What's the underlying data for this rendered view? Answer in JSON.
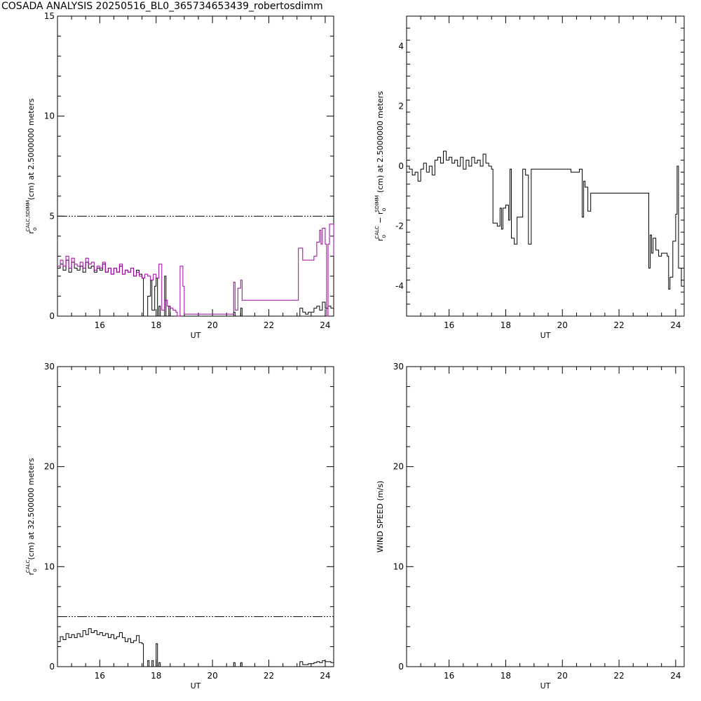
{
  "title": "COSADA ANALYSIS 20250516_BL0_365734653439_robertosdimm",
  "colors": {
    "axis": "#000000",
    "primary": "#000000",
    "secondary": "#a000a0"
  },
  "chart_data": [
    {
      "type": "line",
      "panel": "top-left",
      "xlabel": "UT",
      "ylabel_parts": [
        "r",
        "o",
        "CALC,SDIMM",
        "(cm)  at  2.5000000 meters"
      ],
      "xlim": [
        14.5,
        24.3
      ],
      "ylim": [
        0,
        15
      ],
      "xticks": [
        16,
        18,
        20,
        22,
        24
      ],
      "yticks": [
        0,
        5,
        10,
        15
      ],
      "reference_line": 5,
      "series": [
        {
          "color": "#000000",
          "step": true,
          "points": [
            [
              14.5,
              2.4
            ],
            [
              14.6,
              2.6
            ],
            [
              14.7,
              2.3
            ],
            [
              14.8,
              2.8
            ],
            [
              14.9,
              2.2
            ],
            [
              15.0,
              2.7
            ],
            [
              15.1,
              2.4
            ],
            [
              15.2,
              2.3
            ],
            [
              15.3,
              2.5
            ],
            [
              15.4,
              2.2
            ],
            [
              15.5,
              2.7
            ],
            [
              15.6,
              2.4
            ],
            [
              15.7,
              2.5
            ],
            [
              15.8,
              2.2
            ],
            [
              15.9,
              2.4
            ],
            [
              16.0,
              2.3
            ],
            [
              16.1,
              2.6
            ],
            [
              16.2,
              2.2
            ],
            [
              16.3,
              2.4
            ],
            [
              16.4,
              2.1
            ],
            [
              16.5,
              2.4
            ],
            [
              16.6,
              2.2
            ],
            [
              16.7,
              2.5
            ],
            [
              16.8,
              2.1
            ],
            [
              16.9,
              2.3
            ],
            [
              17.0,
              2.2
            ],
            [
              17.1,
              2.4
            ],
            [
              17.2,
              2.0
            ],
            [
              17.3,
              2.3
            ],
            [
              17.4,
              2.1
            ],
            [
              17.5,
              1.9
            ],
            [
              17.55,
              0
            ],
            [
              17.7,
              1.0
            ],
            [
              17.8,
              1.8
            ],
            [
              17.85,
              0.3
            ],
            [
              17.95,
              1.5
            ],
            [
              18.0,
              1.9
            ],
            [
              18.05,
              0
            ],
            [
              18.1,
              0.5
            ],
            [
              18.15,
              0
            ],
            [
              18.3,
              2.0
            ],
            [
              18.35,
              0
            ],
            [
              18.45,
              0.5
            ],
            [
              18.5,
              0
            ],
            [
              20.7,
              0
            ],
            [
              20.75,
              0.2
            ],
            [
              20.8,
              0
            ],
            [
              21.0,
              0.4
            ],
            [
              21.05,
              0
            ],
            [
              23.0,
              0
            ],
            [
              23.1,
              0.4
            ],
            [
              23.2,
              0.2
            ],
            [
              23.3,
              0.1
            ],
            [
              23.4,
              0.2
            ],
            [
              23.5,
              0.2
            ],
            [
              23.6,
              0.4
            ],
            [
              23.7,
              0.5
            ],
            [
              23.8,
              0.3
            ],
            [
              23.9,
              0.7
            ],
            [
              24.0,
              0.4
            ],
            [
              24.1,
              0.5
            ],
            [
              24.2,
              0.4
            ],
            [
              24.3,
              0.3
            ]
          ]
        },
        {
          "color": "#a000a0",
          "step": true,
          "points": [
            [
              14.5,
              2.5
            ],
            [
              14.6,
              2.8
            ],
            [
              14.7,
              2.5
            ],
            [
              14.8,
              3.0
            ],
            [
              14.9,
              2.4
            ],
            [
              15.0,
              2.9
            ],
            [
              15.1,
              2.6
            ],
            [
              15.2,
              2.5
            ],
            [
              15.3,
              2.7
            ],
            [
              15.4,
              2.4
            ],
            [
              15.5,
              2.9
            ],
            [
              15.6,
              2.6
            ],
            [
              15.7,
              2.7
            ],
            [
              15.8,
              2.3
            ],
            [
              15.9,
              2.5
            ],
            [
              16.0,
              2.4
            ],
            [
              16.1,
              2.7
            ],
            [
              16.2,
              2.2
            ],
            [
              16.3,
              2.4
            ],
            [
              16.4,
              2.1
            ],
            [
              16.5,
              2.4
            ],
            [
              16.6,
              2.2
            ],
            [
              16.7,
              2.6
            ],
            [
              16.8,
              2.1
            ],
            [
              16.9,
              2.3
            ],
            [
              17.0,
              2.2
            ],
            [
              17.1,
              2.4
            ],
            [
              17.2,
              2.0
            ],
            [
              17.3,
              2.2
            ],
            [
              17.4,
              2.0
            ],
            [
              17.5,
              1.9
            ],
            [
              17.6,
              2.1
            ],
            [
              17.7,
              2.0
            ],
            [
              17.8,
              1.8
            ],
            [
              17.9,
              2.1
            ],
            [
              18.0,
              1.9
            ],
            [
              18.1,
              2.6
            ],
            [
              18.2,
              0.3
            ],
            [
              18.3,
              0.8
            ],
            [
              18.4,
              0.5
            ],
            [
              18.5,
              0.4
            ],
            [
              18.6,
              0.3
            ],
            [
              18.7,
              0.2
            ],
            [
              18.75,
              0
            ],
            [
              18.85,
              2.5
            ],
            [
              18.95,
              1.5
            ],
            [
              19.0,
              0.1
            ],
            [
              20.7,
              0.1
            ],
            [
              20.75,
              1.7
            ],
            [
              20.8,
              0.3
            ],
            [
              20.9,
              1.4
            ],
            [
              21.0,
              1.8
            ],
            [
              21.05,
              0.8
            ],
            [
              23.0,
              0.8
            ],
            [
              23.05,
              3.4
            ],
            [
              23.2,
              2.8
            ],
            [
              23.6,
              3.0
            ],
            [
              23.7,
              3.7
            ],
            [
              23.8,
              4.3
            ],
            [
              23.85,
              3.6
            ],
            [
              23.9,
              4.4
            ],
            [
              24.0,
              3.6
            ],
            [
              24.05,
              0
            ],
            [
              24.1,
              3.6
            ],
            [
              24.15,
              4.6
            ],
            [
              24.3,
              3.0
            ]
          ]
        }
      ]
    },
    {
      "type": "line",
      "panel": "top-right",
      "xlabel": "UT",
      "ylabel_parts": [
        "r",
        "o",
        "CALC",
        "  −  r",
        "o",
        "SDIMM",
        " (cm)  at  2.5000000 meters"
      ],
      "xlim": [
        14.5,
        24.3
      ],
      "ylim": [
        -5,
        5
      ],
      "xticks": [
        16,
        18,
        20,
        22,
        24
      ],
      "yticks": [
        -4,
        -2,
        0,
        2,
        4
      ],
      "series": [
        {
          "color": "#000000",
          "step": true,
          "points": [
            [
              14.5,
              0
            ],
            [
              14.6,
              -0.1
            ],
            [
              14.7,
              -0.3
            ],
            [
              14.8,
              -0.2
            ],
            [
              14.9,
              -0.5
            ],
            [
              15.0,
              -0.1
            ],
            [
              15.1,
              0.1
            ],
            [
              15.2,
              -0.2
            ],
            [
              15.3,
              0
            ],
            [
              15.4,
              -0.3
            ],
            [
              15.5,
              0.2
            ],
            [
              15.6,
              0.3
            ],
            [
              15.7,
              0.1
            ],
            [
              15.8,
              0.5
            ],
            [
              15.9,
              0.2
            ],
            [
              16.0,
              0.3
            ],
            [
              16.1,
              0.1
            ],
            [
              16.2,
              0.2
            ],
            [
              16.3,
              0
            ],
            [
              16.4,
              0.3
            ],
            [
              16.5,
              -0.1
            ],
            [
              16.6,
              0.2
            ],
            [
              16.7,
              0
            ],
            [
              16.8,
              0.3
            ],
            [
              16.9,
              0.1
            ],
            [
              17.0,
              0.2
            ],
            [
              17.1,
              0
            ],
            [
              17.2,
              0.4
            ],
            [
              17.3,
              0.1
            ],
            [
              17.4,
              0
            ],
            [
              17.5,
              -0.1
            ],
            [
              17.55,
              -1.9
            ],
            [
              17.7,
              -2.0
            ],
            [
              17.8,
              -1.4
            ],
            [
              17.85,
              -2.1
            ],
            [
              17.9,
              -1.4
            ],
            [
              18.0,
              -1.3
            ],
            [
              18.1,
              -1.8
            ],
            [
              18.15,
              -0.1
            ],
            [
              18.2,
              -2.4
            ],
            [
              18.3,
              -2.6
            ],
            [
              18.4,
              -1.7
            ],
            [
              18.6,
              -0.1
            ],
            [
              18.7,
              -0.3
            ],
            [
              18.8,
              -2.6
            ],
            [
              18.9,
              -0.1
            ],
            [
              19.0,
              -0.1
            ],
            [
              19.2,
              -0.1
            ],
            [
              20.3,
              -0.2
            ],
            [
              20.6,
              -0.1
            ],
            [
              20.7,
              -1.7
            ],
            [
              20.75,
              -0.5
            ],
            [
              20.8,
              -0.7
            ],
            [
              20.9,
              -1.5
            ],
            [
              21.0,
              -0.9
            ],
            [
              23.0,
              -0.9
            ],
            [
              23.05,
              -3.4
            ],
            [
              23.1,
              -2.3
            ],
            [
              23.15,
              -2.9
            ],
            [
              23.2,
              -2.4
            ],
            [
              23.3,
              -2.8
            ],
            [
              23.4,
              -3.0
            ],
            [
              23.5,
              -2.9
            ],
            [
              23.7,
              -3.0
            ],
            [
              23.75,
              -4.1
            ],
            [
              23.8,
              -3.7
            ],
            [
              23.9,
              -2.5
            ],
            [
              24.0,
              -1.6
            ],
            [
              24.05,
              0
            ],
            [
              24.1,
              -3.4
            ],
            [
              24.2,
              -4.0
            ],
            [
              24.3,
              -4.6
            ]
          ]
        }
      ]
    },
    {
      "type": "line",
      "panel": "bottom-left",
      "xlabel": "UT",
      "ylabel_parts": [
        "r",
        "o",
        "CALC",
        "(cm)  at  32.500000 meters"
      ],
      "xlim": [
        14.5,
        24.3
      ],
      "ylim": [
        0,
        30
      ],
      "xticks": [
        16,
        18,
        20,
        22,
        24
      ],
      "yticks": [
        0,
        10,
        20,
        30
      ],
      "reference_line": 5,
      "series": [
        {
          "color": "#000000",
          "step": true,
          "points": [
            [
              14.5,
              2.5
            ],
            [
              14.6,
              3.0
            ],
            [
              14.7,
              2.7
            ],
            [
              14.8,
              3.3
            ],
            [
              14.9,
              2.9
            ],
            [
              15.0,
              3.2
            ],
            [
              15.1,
              2.9
            ],
            [
              15.2,
              3.3
            ],
            [
              15.3,
              3.0
            ],
            [
              15.4,
              3.6
            ],
            [
              15.5,
              3.2
            ],
            [
              15.6,
              3.8
            ],
            [
              15.7,
              3.4
            ],
            [
              15.8,
              3.6
            ],
            [
              15.9,
              3.2
            ],
            [
              16.0,
              3.4
            ],
            [
              16.1,
              3.1
            ],
            [
              16.2,
              3.3
            ],
            [
              16.3,
              2.9
            ],
            [
              16.4,
              3.2
            ],
            [
              16.5,
              2.8
            ],
            [
              16.6,
              3.0
            ],
            [
              16.7,
              3.4
            ],
            [
              16.8,
              2.9
            ],
            [
              16.9,
              2.5
            ],
            [
              17.0,
              2.8
            ],
            [
              17.1,
              2.4
            ],
            [
              17.2,
              2.6
            ],
            [
              17.3,
              3.1
            ],
            [
              17.4,
              2.4
            ],
            [
              17.5,
              2.3
            ],
            [
              17.55,
              0
            ],
            [
              17.7,
              0.6
            ],
            [
              17.75,
              0
            ],
            [
              17.85,
              0.6
            ],
            [
              17.9,
              0
            ],
            [
              18.0,
              2.3
            ],
            [
              18.05,
              0
            ],
            [
              18.1,
              0.4
            ],
            [
              18.15,
              0
            ],
            [
              20.7,
              0
            ],
            [
              20.75,
              0.4
            ],
            [
              20.8,
              0
            ],
            [
              21.0,
              0.4
            ],
            [
              21.05,
              0
            ],
            [
              23.0,
              0
            ],
            [
              23.1,
              0.5
            ],
            [
              23.2,
              0.2
            ],
            [
              23.4,
              0.3
            ],
            [
              23.5,
              0.3
            ],
            [
              23.6,
              0.4
            ],
            [
              23.7,
              0.5
            ],
            [
              23.8,
              0.4
            ],
            [
              23.9,
              0.6
            ],
            [
              24.0,
              0.5
            ],
            [
              24.1,
              0.5
            ],
            [
              24.2,
              0.4
            ],
            [
              24.3,
              0.3
            ]
          ]
        }
      ]
    },
    {
      "type": "line",
      "panel": "bottom-right",
      "xlabel": "UT",
      "ylabel_parts": [
        "WIND SPEED (m/s)"
      ],
      "xlim": [
        14.5,
        24.3
      ],
      "ylim": [
        0,
        30
      ],
      "xticks": [
        16,
        18,
        20,
        22,
        24
      ],
      "yticks": [
        0,
        10,
        20,
        30
      ],
      "series": []
    }
  ]
}
